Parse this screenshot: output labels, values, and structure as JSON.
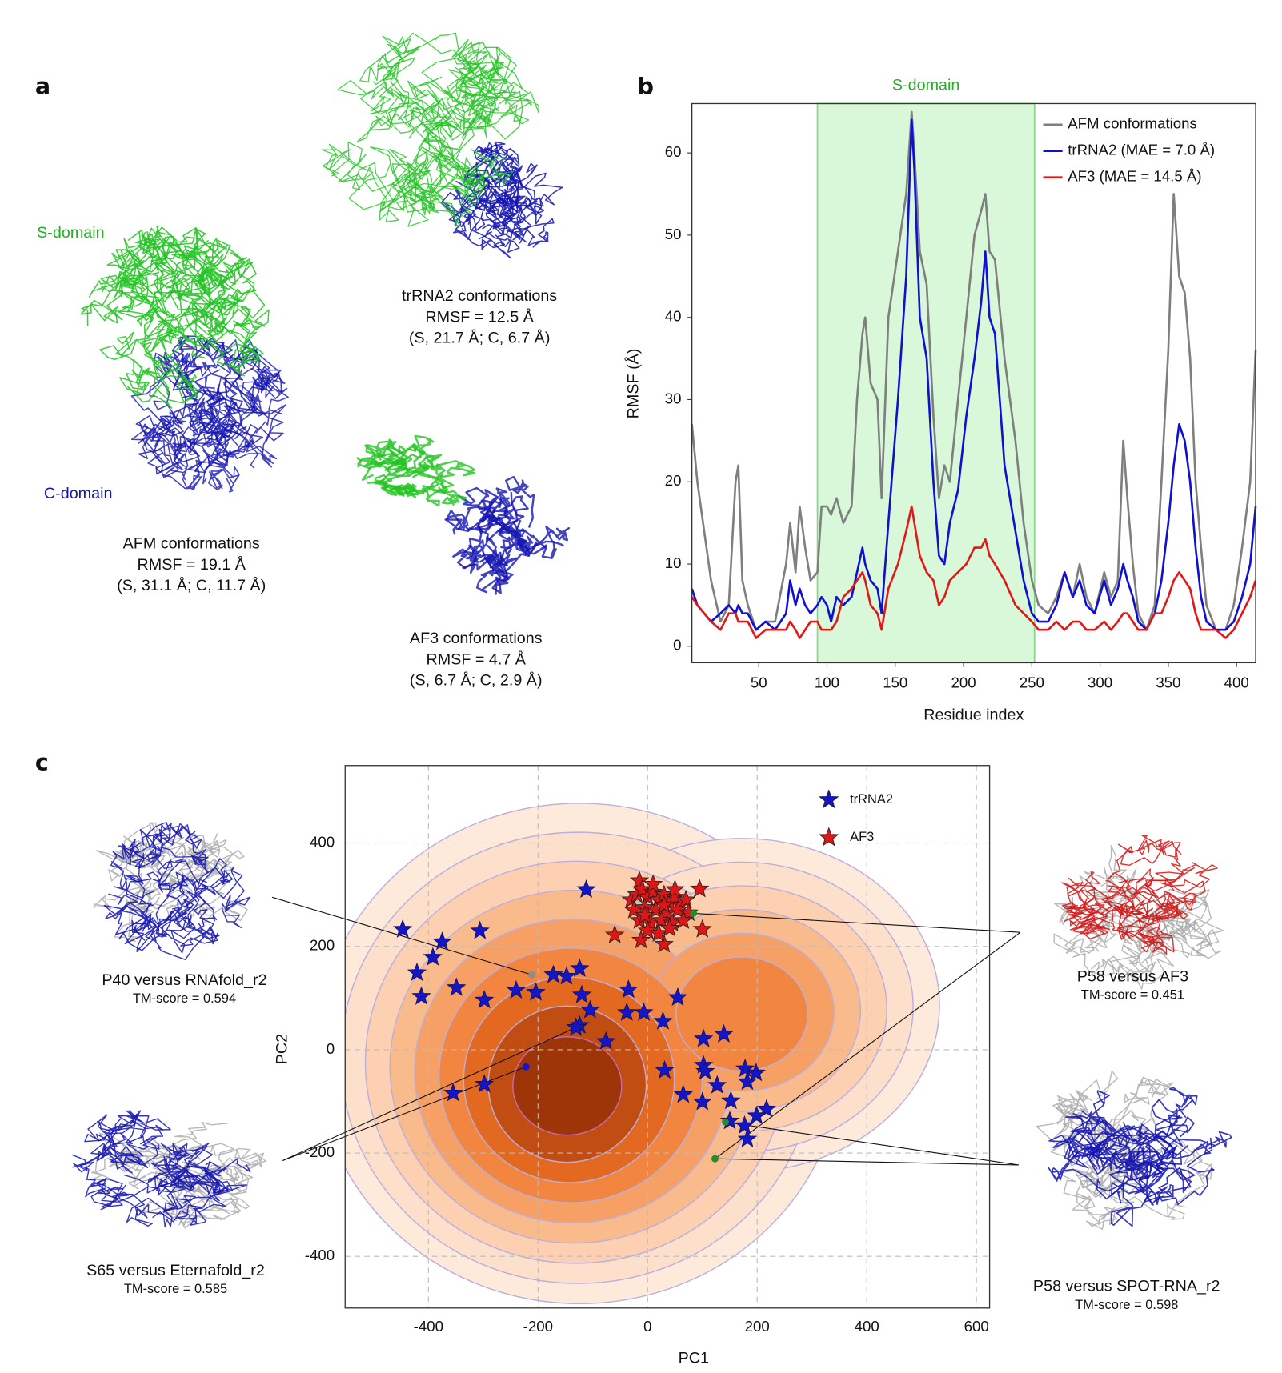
{
  "panel_a": {
    "label": "a",
    "s_domain": "S-domain",
    "c_domain": "C-domain",
    "captions": [
      [
        "AFM conformations",
        "RMSF = 19.1 Å",
        "(S, 31.1 Å; C, 11.7 Å)"
      ],
      [
        "trRNA2 conformations",
        "RMSF = 12.5 Å",
        "(S, 21.7 Å; C, 6.7 Å)"
      ],
      [
        "AF3 conformations",
        "RMSF = 4.7 Å",
        "(S, 6.7 Å; C, 2.9 Å)"
      ]
    ]
  },
  "chart_data": [
    {
      "type": "line",
      "panel_label": "b",
      "xlabel": "Residue index",
      "ylabel": "RMSF (Å)",
      "xlim": [
        1,
        414
      ],
      "ylim": [
        -2,
        66
      ],
      "xticks": [
        50,
        100,
        150,
        200,
        250,
        300,
        350,
        400
      ],
      "yticks": [
        0,
        10,
        20,
        30,
        40,
        50,
        60
      ],
      "span": {
        "label": "S-domain",
        "range": [
          93,
          252
        ],
        "color": "#d9f7d9",
        "edge": "#7fd87f",
        "label_color": "#2aaa2a"
      },
      "legend": "upper right",
      "x": [
        1,
        5,
        15,
        22,
        28,
        33,
        35,
        38,
        42,
        48,
        55,
        62,
        70,
        73,
        77,
        80,
        84,
        88,
        93,
        96,
        100,
        103,
        107,
        112,
        118,
        122,
        126,
        128,
        132,
        137,
        140,
        145,
        152,
        158,
        162,
        164,
        168,
        173,
        178,
        182,
        186,
        190,
        196,
        202,
        208,
        213,
        216,
        219,
        223,
        230,
        238,
        244,
        250,
        255,
        262,
        268,
        274,
        280,
        285,
        290,
        296,
        303,
        308,
        313,
        317,
        320,
        324,
        328,
        334,
        340,
        345,
        350,
        354,
        358,
        362,
        366,
        370,
        374,
        378,
        385,
        392,
        398,
        404,
        410,
        414
      ],
      "series": [
        {
          "name": "AFM conformations",
          "color": "#7f7f7f",
          "values": [
            27,
            20,
            8,
            3,
            5,
            20,
            22,
            8,
            5,
            2,
            3,
            3,
            10,
            15,
            9,
            17,
            12,
            8,
            9,
            17,
            17,
            16,
            18,
            15,
            17,
            30,
            38,
            40,
            32,
            30,
            18,
            40,
            48,
            55,
            65,
            60,
            48,
            44,
            28,
            18,
            22,
            20,
            30,
            40,
            50,
            53,
            55,
            48,
            47,
            35,
            25,
            15,
            8,
            5,
            4,
            6,
            9,
            6,
            10,
            6,
            4,
            9,
            6,
            8,
            25,
            18,
            10,
            4,
            2,
            5,
            20,
            36,
            55,
            45,
            43,
            35,
            20,
            12,
            5,
            2,
            2,
            5,
            12,
            20,
            36
          ]
        },
        {
          "name": "trRNA2 (MAE = 7.0 Å)",
          "color": "#1010d0",
          "values": [
            7,
            5,
            3,
            4,
            5,
            4,
            5,
            4,
            4,
            2,
            3,
            2,
            4,
            8,
            5,
            7,
            5,
            4,
            5,
            6,
            5,
            3,
            6,
            5,
            6,
            9,
            12,
            10,
            8,
            7,
            4,
            15,
            30,
            45,
            64,
            58,
            40,
            35,
            20,
            11,
            10,
            15,
            19,
            28,
            35,
            42,
            48,
            40,
            38,
            22,
            14,
            8,
            4,
            3,
            3,
            5,
            9,
            6,
            8,
            5,
            4,
            8,
            5,
            7,
            10,
            8,
            6,
            3,
            2,
            4,
            8,
            15,
            22,
            27,
            25,
            20,
            12,
            6,
            3,
            2,
            2,
            3,
            6,
            10,
            17
          ]
        },
        {
          "name": "AF3 (MAE = 14.5 Å)",
          "color": "#e01818",
          "values": [
            6,
            5,
            3,
            2,
            4,
            4,
            3,
            3,
            3,
            1,
            2,
            2,
            2,
            3,
            2,
            1,
            2,
            3,
            3,
            2,
            2,
            2,
            3,
            6,
            7,
            8,
            9,
            8,
            5,
            4,
            2,
            7,
            10,
            14,
            17,
            15,
            11,
            9,
            8,
            5,
            6,
            8,
            9,
            10,
            12,
            12,
            13,
            11,
            10,
            8,
            5,
            4,
            3,
            2,
            2,
            3,
            2,
            3,
            3,
            2,
            2,
            3,
            2,
            3,
            4,
            4,
            3,
            2,
            2,
            4,
            4,
            6,
            8,
            9,
            8,
            7,
            4,
            2,
            2,
            2,
            1,
            2,
            4,
            6,
            8
          ]
        }
      ]
    },
    {
      "type": "scatter",
      "panel_label": "c",
      "xlabel": "PC1",
      "ylabel": "PC2",
      "xlim": [
        -552,
        624
      ],
      "ylim": [
        -500,
        550
      ],
      "xticks": [
        -400,
        -200,
        0,
        200,
        400,
        600
      ],
      "yticks": [
        -400,
        -200,
        0,
        200,
        400
      ],
      "grid": true,
      "legend": "upper right",
      "series": [
        {
          "name": "trRNA2",
          "color": "#1515c8",
          "marker": "star",
          "x": [
            -112,
            -447,
            -306,
            -375,
            -392,
            -421,
            -413,
            -349,
            -298,
            -240,
            -204,
            -172,
            -148,
            -124,
            -120,
            -105,
            -124,
            -131,
            -76,
            -35,
            -38,
            -7,
            28,
            55,
            102,
            139,
            31,
            102,
            105,
            127,
            65,
            100,
            152,
            178,
            182,
            198,
            217,
            199,
            177,
            182,
            150,
            -355,
            -298
          ],
          "values": [
            310,
            233,
            230,
            209,
            179,
            149,
            103,
            120,
            96,
            115,
            111,
            145,
            142,
            157,
            106,
            77,
            47,
            43,
            16,
            116,
            72,
            72,
            55,
            101,
            21,
            30,
            -40,
            -30,
            -42,
            -69,
            -87,
            -101,
            -99,
            -37,
            -62,
            -45,
            -115,
            -128,
            -147,
            -173,
            -138,
            -84,
            -67
          ]
        },
        {
          "name": "AF3",
          "color": "#e01515",
          "marker": "star",
          "x": [
            -15,
            95,
            -60,
            100,
            30,
            -12,
            -30,
            -20,
            -10,
            0,
            10,
            20,
            30,
            40,
            50,
            60,
            70,
            -25,
            -5,
            15,
            35,
            55,
            75,
            -15,
            5,
            25,
            45,
            65,
            0,
            20,
            40,
            -5,
            30,
            50,
            10
          ],
          "values": [
            327,
            311,
            222,
            233,
            204,
            212,
            290,
            300,
            310,
            295,
            305,
            290,
            300,
            285,
            295,
            280,
            290,
            270,
            275,
            270,
            265,
            270,
            265,
            250,
            245,
            250,
            245,
            250,
            230,
            225,
            235,
            260,
            280,
            310,
            320
          ]
        }
      ],
      "callouts": [
        {
          "title": "P40 versus RNAfold_r2",
          "score": "TM-score = 0.594",
          "color": "#8c8c8c",
          "points": [
            {
              "x": -211,
              "y": 145
            }
          ]
        },
        {
          "title": "S65 versus Eternafold_r2",
          "score": "TM-score = 0.585",
          "color": "#1515c8",
          "points": [
            {
              "x": -222,
              "y": -33
            },
            {
              "x": -131,
              "y": 43
            }
          ]
        },
        {
          "title": "P58 versus AF3",
          "score": "TM-score = 0.451",
          "color": "#2a8a2a",
          "points": [
            {
              "x": 84,
              "y": 264
            },
            {
              "x": 123,
              "y": -211
            }
          ]
        },
        {
          "title": "P58 versus SPOT-RNA_r2",
          "score": "TM-score = 0.598",
          "color": "#2a8a2a",
          "points": [
            {
              "x": 142,
              "y": -140
            },
            {
              "x": 123,
              "y": -211
            }
          ]
        }
      ]
    }
  ]
}
